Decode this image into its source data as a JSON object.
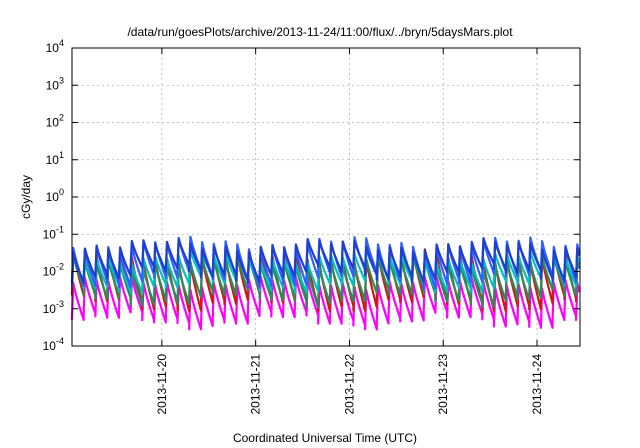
{
  "chart_data": {
    "type": "line",
    "title": "/data/run/goesPlots/archive/2013-11-24/11:00/flux/../bryn/5daysMars.plot",
    "xlabel": "Coordinated Universal Time (UTC)",
    "ylabel": "cGy/day",
    "x_type": "time",
    "xlim": [
      "2013-11-19T01:00",
      "2013-11-24T11:00"
    ],
    "x_ticks": [
      "2013-11-20",
      "2013-11-21",
      "2013-11-22",
      "2013-11-23",
      "2013-11-24"
    ],
    "y_scale": "log",
    "ylim": [
      0.0001,
      10000
    ],
    "y_ticks": [
      {
        "base": "10",
        "exp": "-4"
      },
      {
        "base": "10",
        "exp": "-3"
      },
      {
        "base": "10",
        "exp": "-2"
      },
      {
        "base": "10",
        "exp": "-1"
      },
      {
        "base": "10",
        "exp": "0"
      },
      {
        "base": "10",
        "exp": "1"
      },
      {
        "base": "10",
        "exp": "2"
      },
      {
        "base": "10",
        "exp": "3"
      },
      {
        "base": "10",
        "exp": "4"
      }
    ],
    "grid": true,
    "legend": "none",
    "series": [
      {
        "color": "#ff00ff",
        "peak_log10": -2.3,
        "trough_log10": -3.3
      },
      {
        "color": "#d01818",
        "peak_log10": -1.6,
        "trough_log10": -2.85
      },
      {
        "color": "#2e8b57",
        "peak_log10": -1.75,
        "trough_log10": -2.7
      },
      {
        "color": "#00c0c0",
        "peak_log10": -1.6,
        "trough_log10": -2.35
      },
      {
        "color": "#3060ff",
        "peak_log10": -1.25,
        "trough_log10": -2.2
      },
      {
        "color": "#1e3fd0",
        "peak_log10": -1.3,
        "trough_log10": -2.05
      }
    ],
    "cycle_period_hours": 3
  }
}
